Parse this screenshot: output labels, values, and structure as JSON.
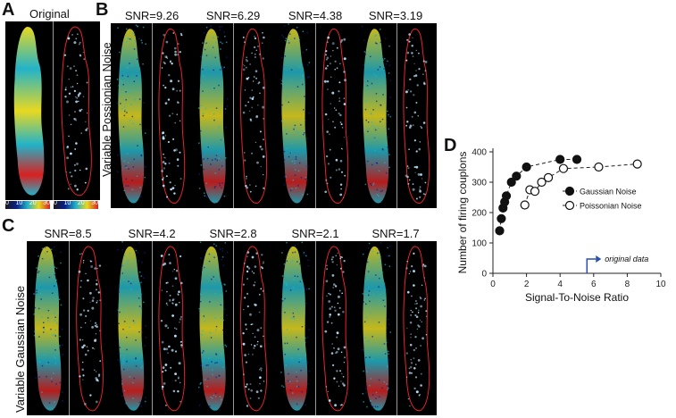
{
  "panels": {
    "a_letter": "A",
    "b_letter": "B",
    "c_letter": "C",
    "d_letter": "D",
    "original_label": "Original",
    "poisson_row_label": "Variable Possionian Noise",
    "gaussian_row_label": "Variable Gaussian Noise",
    "poisson_snr": [
      "SNR=9.26",
      "SNR=6.29",
      "SNR=4.38",
      "SNR=3.19"
    ],
    "gaussian_snr": [
      "SNR=8.5",
      "SNR=4.2",
      "SNR=2.8",
      "SNR=2.1",
      "SNR=1.7"
    ],
    "colorbar_left_ticks": [
      "0",
      "10",
      "20",
      "30"
    ],
    "colorbar_right_ticks": [
      "0",
      "10",
      "20",
      "30"
    ]
  },
  "colors": {
    "heat_low": "#0a1f8a",
    "heat_mid": "#22b3c9",
    "heat_high": "#e8d820",
    "heat_peak": "#d82020",
    "outline": "#e8232b",
    "dots": "#bfe6ff"
  },
  "chart_data": {
    "type": "scatter",
    "xlabel": "Signal-To-Noise Ratio",
    "ylabel": "Number of firing couplons",
    "xlim": [
      0,
      10
    ],
    "ylim": [
      0,
      400
    ],
    "x_ticks": [
      0,
      2,
      4,
      6,
      8,
      10
    ],
    "y_ticks": [
      0,
      100,
      200,
      300,
      400
    ],
    "grid": false,
    "legend_position": "right",
    "annotation": "original data",
    "annotation_x": 5.6,
    "series": [
      {
        "name": "Gaussian Noise",
        "marker": "filled-circle",
        "points": [
          [
            0.4,
            140
          ],
          [
            0.5,
            180
          ],
          [
            0.6,
            215
          ],
          [
            0.7,
            235
          ],
          [
            0.8,
            255
          ],
          [
            1.1,
            300
          ],
          [
            1.4,
            320
          ],
          [
            2.0,
            350
          ],
          [
            4.0,
            375
          ],
          [
            5.0,
            375
          ]
        ]
      },
      {
        "name": "Poissonian Noise",
        "marker": "open-circle",
        "points": [
          [
            1.9,
            225
          ],
          [
            2.2,
            275
          ],
          [
            2.5,
            270
          ],
          [
            2.9,
            300
          ],
          [
            3.3,
            315
          ],
          [
            4.2,
            345
          ],
          [
            6.3,
            350
          ],
          [
            8.6,
            360
          ]
        ]
      }
    ]
  }
}
